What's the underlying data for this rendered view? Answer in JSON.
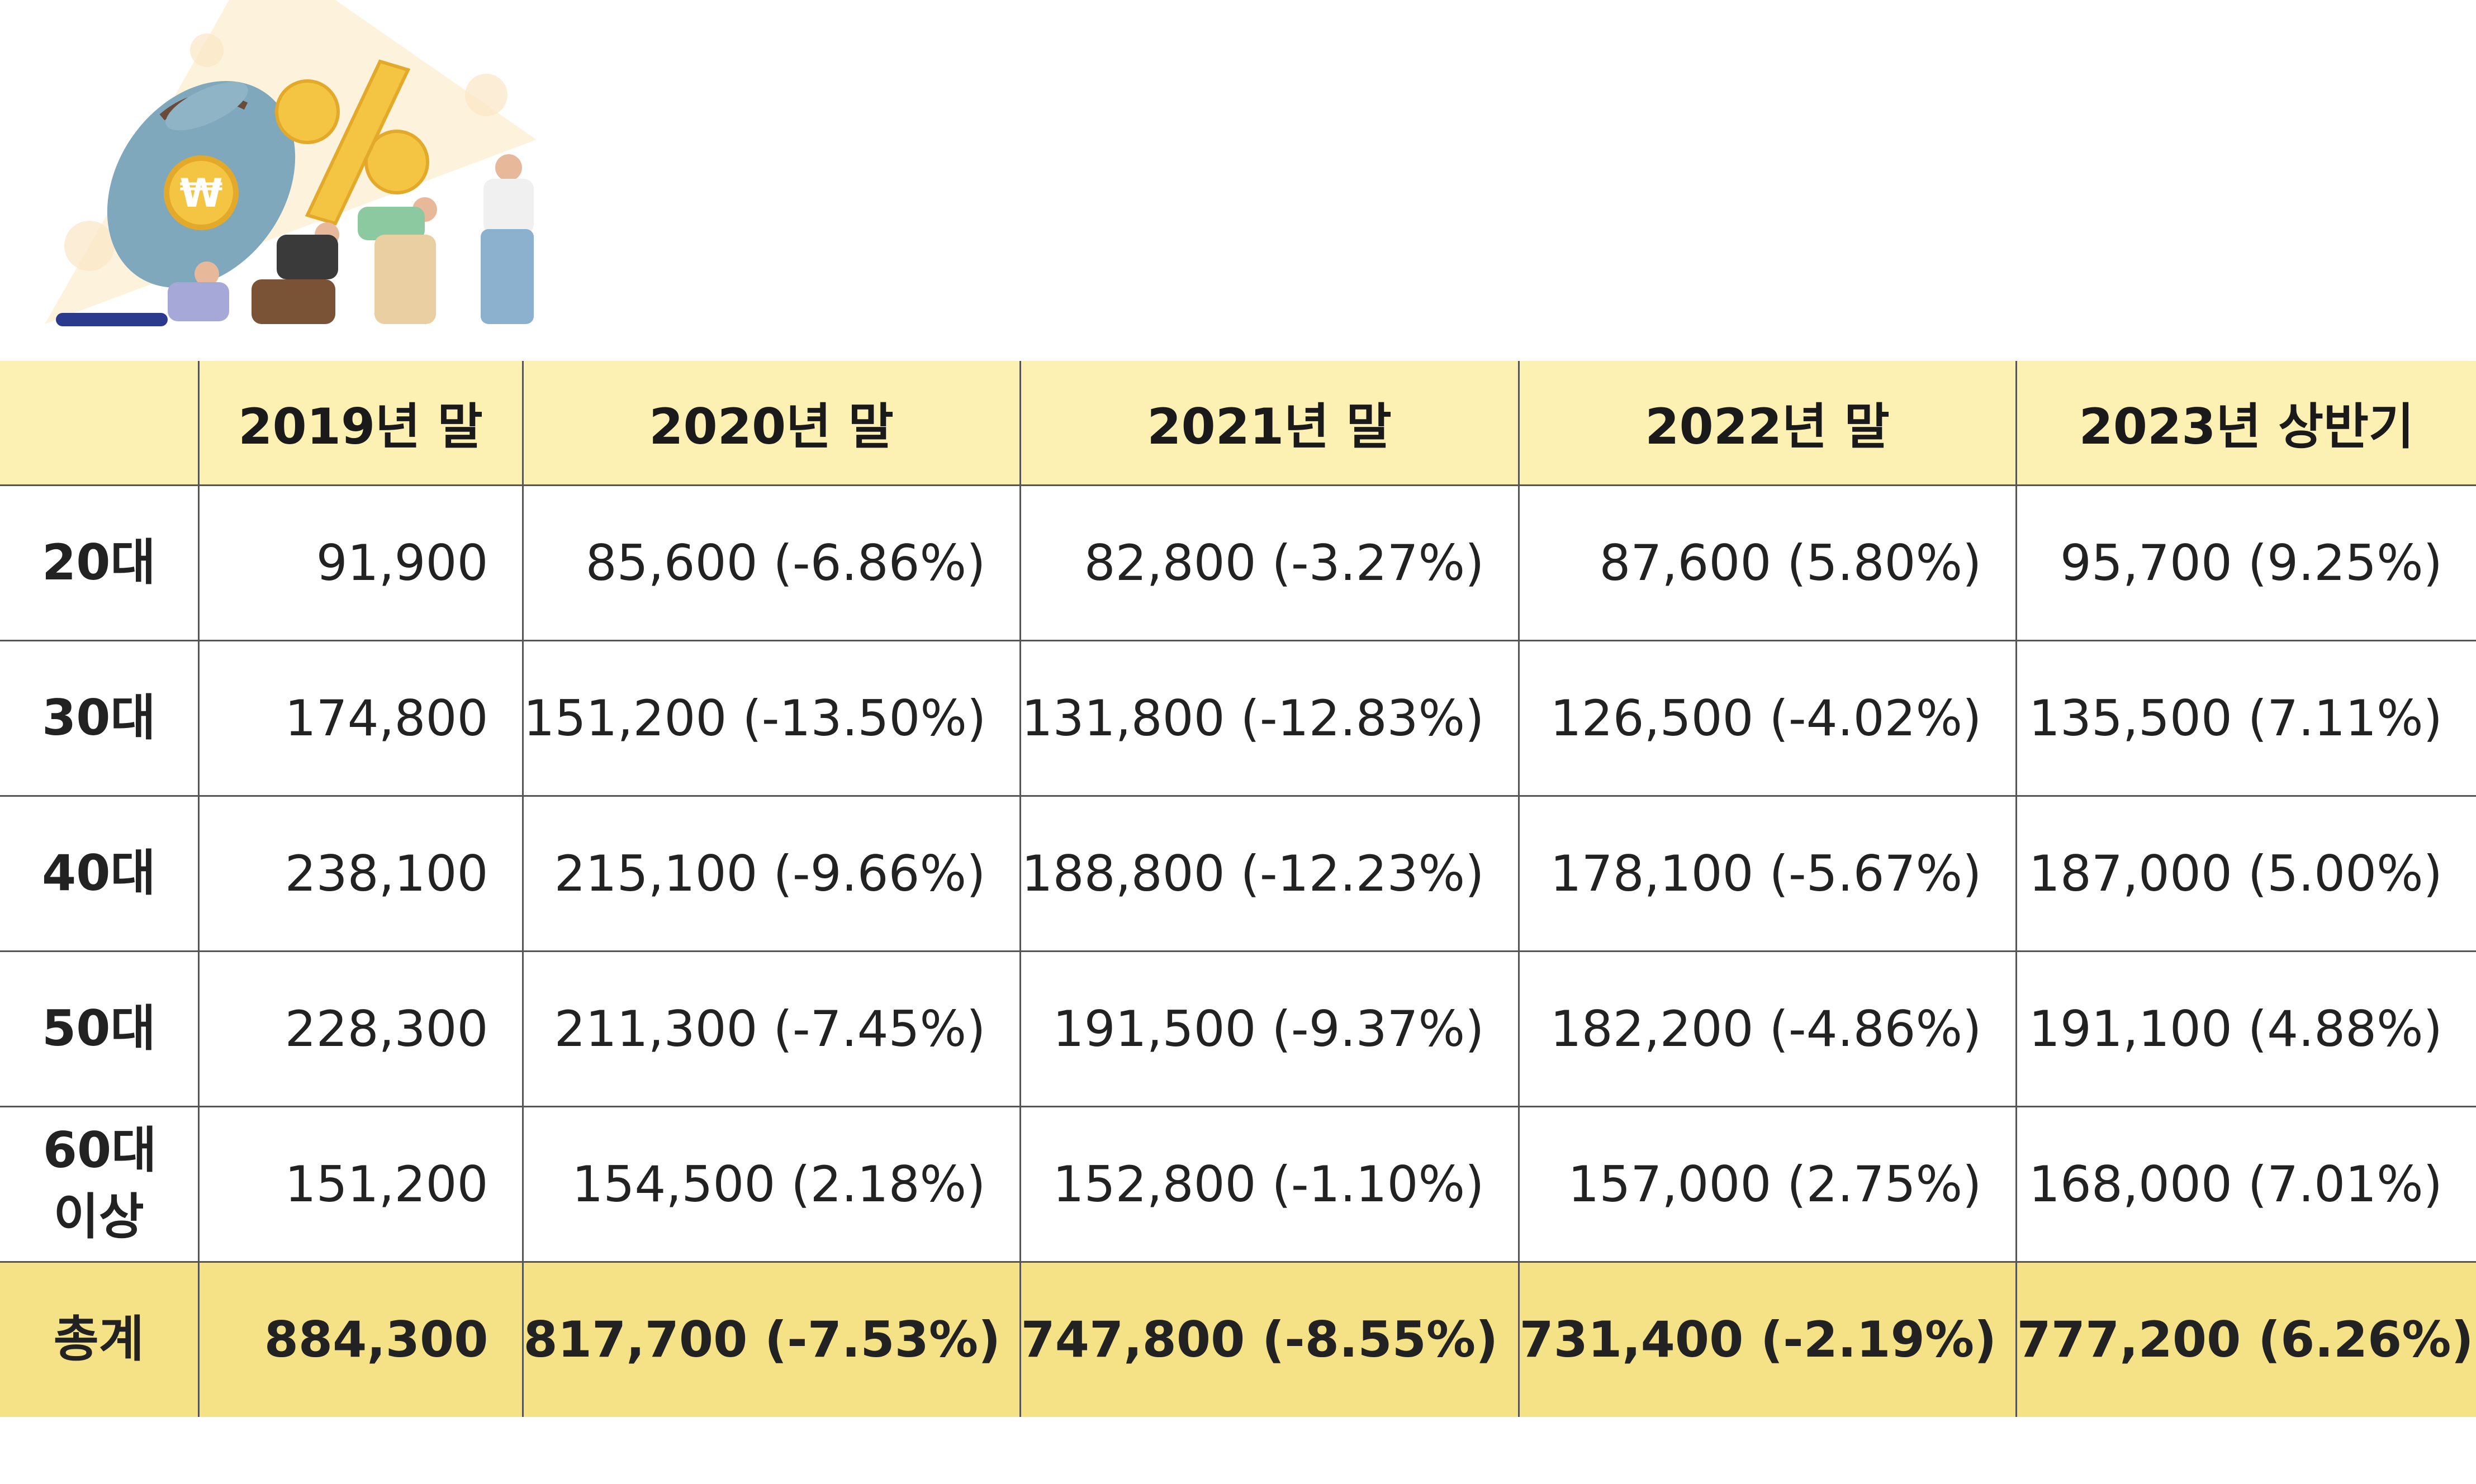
{
  "illustration": {
    "icon": "money-bag-percent-people-illustration",
    "colors": {
      "bag": "#7fa8bc",
      "coin": "#f4c542",
      "background_triangle": "#fdf3dc"
    }
  },
  "table": {
    "header_bg": "#fcf0b3",
    "total_bg": "#f5e186",
    "columns": [
      "",
      "2019년 말",
      "2020년 말",
      "2021년 말",
      "2022년 말",
      "2023년 상반기"
    ],
    "rows": [
      {
        "label": "20대",
        "cells": [
          "91,900",
          "85,600 (-6.86%)",
          "82,800 (-3.27%)",
          "87,600 (5.80%)",
          "95,700 (9.25%)"
        ]
      },
      {
        "label": "30대",
        "cells": [
          "174,800",
          "151,200 (-13.50%)",
          "131,800 (-12.83%)",
          "126,500 (-4.02%)",
          "135,500 (7.11%)"
        ]
      },
      {
        "label": "40대",
        "cells": [
          "238,100",
          "215,100 (-9.66%)",
          "188,800 (-12.23%)",
          "178,100 (-5.67%)",
          "187,000 (5.00%)"
        ]
      },
      {
        "label": "50대",
        "cells": [
          "228,300",
          "211,300 (-7.45%)",
          "191,500 (-9.37%)",
          "182,200 (-4.86%)",
          "191,100 (4.88%)"
        ]
      },
      {
        "label": "60대 이상",
        "cells": [
          "151,200",
          "154,500 (2.18%)",
          "152,800 (-1.10%)",
          "157,000 (2.75%)",
          "168,000 (7.01%)"
        ]
      }
    ],
    "total": {
      "label": "총계",
      "cells": [
        "884,300",
        "817,700 (-7.53%)",
        "747,800 (-8.55%)",
        "731,400 (-2.19%)",
        "777,200 (6.26%)"
      ]
    }
  }
}
